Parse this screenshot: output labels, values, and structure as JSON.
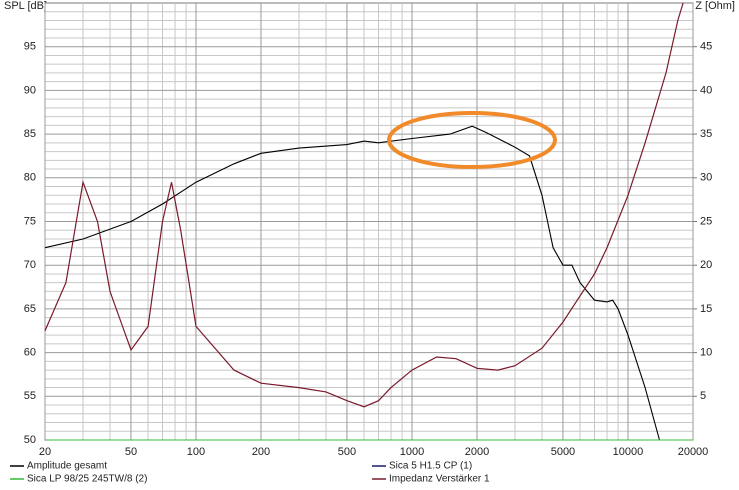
{
  "chart_data": {
    "type": "line",
    "ylabel": "SPL [dB]",
    "y2label": "Z [Ohm]",
    "xscale": "log",
    "xlim": [
      20,
      20000
    ],
    "ylim": [
      50,
      100
    ],
    "y2lim": [
      0,
      50
    ],
    "xticks": [
      20,
      50,
      100,
      200,
      500,
      1000,
      2000,
      5000,
      10000,
      20000
    ],
    "yticks": [
      50,
      55,
      60,
      65,
      70,
      75,
      80,
      85,
      90,
      95
    ],
    "y2ticks": [
      5,
      10,
      15,
      20,
      25,
      30,
      35,
      40,
      45
    ],
    "xgrid": [
      30,
      40,
      60,
      70,
      80,
      90,
      300,
      400,
      600,
      700,
      800,
      900,
      3000,
      4000,
      6000,
      7000,
      8000,
      9000
    ],
    "ygrid": [
      51,
      52,
      53,
      54,
      56,
      57,
      58,
      59,
      61,
      62,
      63,
      64,
      66,
      67,
      68,
      69,
      71,
      72,
      73,
      74,
      76,
      77,
      78,
      79,
      81,
      82,
      83,
      84,
      86,
      87,
      88,
      89,
      91,
      92,
      93,
      94,
      96,
      97,
      98,
      99
    ],
    "grid": true,
    "series": [
      {
        "name": "Amplitude gesamt",
        "color": "#000000",
        "x": [
          20,
          30,
          50,
          70,
          100,
          150,
          200,
          300,
          500,
          600,
          700,
          1000,
          1500,
          1900,
          2200,
          3000,
          3500,
          4000,
          4500,
          5000,
          5500,
          6000,
          7000,
          8000,
          8500,
          9000,
          10000,
          12000,
          14000
        ],
        "values": [
          72,
          73,
          75,
          77,
          79.5,
          81.6,
          82.8,
          83.4,
          83.8,
          84.2,
          84,
          84.5,
          85,
          85.9,
          85.2,
          83.5,
          82.5,
          78,
          72,
          70,
          70,
          68,
          66,
          65.8,
          66,
          65,
          62,
          56,
          50
        ]
      },
      {
        "name": "Sica 5 H1.5 CP (1)",
        "color": "#1a1a6e",
        "x": [
          20,
          20000
        ],
        "values": [
          null,
          null
        ]
      },
      {
        "name": "Sica LP 98/25 245TW/8 (2)",
        "color": "#33bb33",
        "x": [
          20,
          20000
        ],
        "values": [
          50,
          50
        ]
      },
      {
        "name": "Impedanz Verstärker 1",
        "color": "#7a1a2a",
        "axis": "y2",
        "x": [
          20,
          25,
          30,
          35,
          40,
          50,
          60,
          70,
          77,
          85,
          100,
          150,
          200,
          300,
          400,
          500,
          600,
          700,
          800,
          1000,
          1300,
          1600,
          2000,
          2500,
          3000,
          4000,
          5000,
          6000,
          7000,
          8000,
          10000,
          12000,
          15000,
          17000,
          18000
        ],
        "values": [
          12.5,
          18,
          29.5,
          25,
          17,
          10.3,
          13,
          25,
          29.5,
          24,
          13,
          8,
          6.5,
          6,
          5.5,
          4.5,
          3.8,
          4.5,
          6,
          8,
          9.5,
          9.3,
          8.2,
          8,
          8.5,
          10.5,
          13.5,
          16.5,
          19,
          22,
          28,
          34,
          42,
          48,
          50
        ]
      }
    ]
  }
}
